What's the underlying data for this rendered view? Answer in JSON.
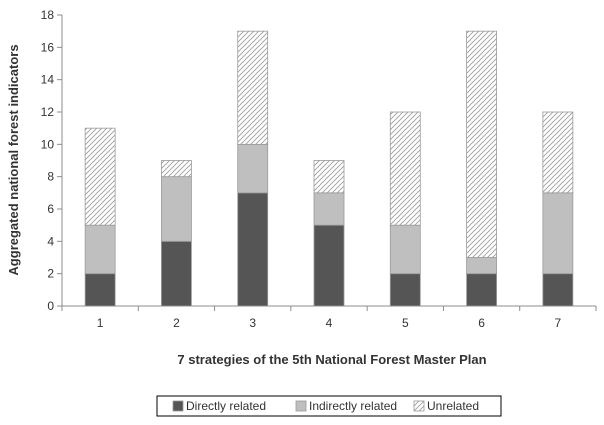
{
  "chart_data": {
    "type": "bar",
    "stacked": true,
    "categories": [
      "1",
      "2",
      "3",
      "4",
      "5",
      "6",
      "7"
    ],
    "series": [
      {
        "name": "Directly related",
        "values": [
          2,
          4,
          7,
          5,
          2,
          2,
          2
        ],
        "color": "#555555",
        "pattern": "solid"
      },
      {
        "name": "Indirectly related",
        "values": [
          3,
          4,
          3,
          2,
          3,
          1,
          5
        ],
        "color": "#bfbfbf",
        "pattern": "solid"
      },
      {
        "name": "Unrelated",
        "values": [
          6,
          1,
          7,
          2,
          7,
          14,
          5
        ],
        "color": "#ffffff",
        "pattern": "diagonal-hatch"
      }
    ],
    "title": "",
    "xlabel": "7 strategies of the 5th National Forest Master Plan",
    "ylabel": "Aggregated national forest indicators",
    "ylim": [
      0,
      18
    ],
    "yticks": [
      0,
      2,
      4,
      6,
      8,
      10,
      12,
      14,
      16,
      18
    ],
    "grid": false,
    "legend_position": "bottom"
  }
}
